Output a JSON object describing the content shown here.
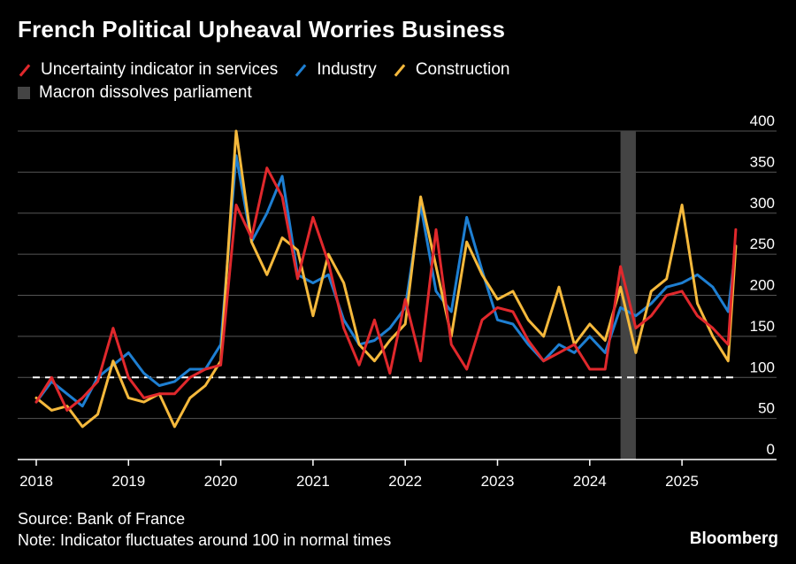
{
  "title": "French Political Upheaval Worries Business",
  "legend": {
    "services": "Uncertainty indicator in services",
    "industry": "Industry",
    "construction": "Construction",
    "event": "Macron dissolves parliament"
  },
  "source": "Source: Bank of France",
  "note": "Note: Indicator fluctuates around 100 in normal times",
  "brand": "Bloomberg",
  "colors": {
    "services": "#e0282c",
    "industry": "#1e7fd2",
    "construction": "#f5b93c",
    "event": "#444444",
    "grid": "#555555",
    "reference": "#ffffff"
  },
  "chart_data": {
    "type": "line",
    "title": "French Political Upheaval Worries Business",
    "x_ticks": [
      "2018",
      "2019",
      "2020",
      "2021",
      "2022",
      "2023",
      "2024",
      "2025"
    ],
    "y_ticks": [
      0,
      50,
      100,
      150,
      200,
      250,
      300,
      350,
      400
    ],
    "ylim": [
      0,
      400
    ],
    "xlim": [
      "2018-01",
      "2025-08"
    ],
    "grid": true,
    "reference_line": {
      "value": 100,
      "style": "dashed"
    },
    "event_band": {
      "label": "Macron dissolves parliament",
      "start": "2024-05",
      "end": "2024-06"
    },
    "series": [
      {
        "name": "Uncertainty indicator in services",
        "color_key": "services",
        "x": [
          "2018-01",
          "2018-03",
          "2018-05",
          "2018-07",
          "2018-09",
          "2018-11",
          "2019-01",
          "2019-03",
          "2019-05",
          "2019-07",
          "2019-09",
          "2019-11",
          "2020-01",
          "2020-03",
          "2020-05",
          "2020-07",
          "2020-09",
          "2020-11",
          "2021-01",
          "2021-03",
          "2021-05",
          "2021-07",
          "2021-09",
          "2021-11",
          "2022-01",
          "2022-03",
          "2022-05",
          "2022-07",
          "2022-09",
          "2022-11",
          "2023-01",
          "2023-03",
          "2023-05",
          "2023-07",
          "2023-09",
          "2023-11",
          "2024-01",
          "2024-03",
          "2024-05",
          "2024-07",
          "2024-09",
          "2024-11",
          "2025-01",
          "2025-03",
          "2025-05",
          "2025-07",
          "2025-08"
        ],
        "values": [
          70,
          100,
          60,
          75,
          95,
          160,
          100,
          75,
          80,
          80,
          100,
          110,
          115,
          310,
          270,
          355,
          320,
          220,
          295,
          240,
          160,
          115,
          170,
          105,
          195,
          120,
          280,
          140,
          110,
          170,
          185,
          180,
          145,
          120,
          130,
          140,
          110,
          110,
          235,
          160,
          175,
          200,
          205,
          175,
          160,
          140,
          280
        ]
      },
      {
        "name": "Industry",
        "color_key": "industry",
        "x": [
          "2018-01",
          "2018-03",
          "2018-05",
          "2018-07",
          "2018-09",
          "2018-11",
          "2019-01",
          "2019-03",
          "2019-05",
          "2019-07",
          "2019-09",
          "2019-11",
          "2020-01",
          "2020-03",
          "2020-05",
          "2020-07",
          "2020-09",
          "2020-11",
          "2021-01",
          "2021-03",
          "2021-05",
          "2021-07",
          "2021-09",
          "2021-11",
          "2022-01",
          "2022-03",
          "2022-05",
          "2022-07",
          "2022-09",
          "2022-11",
          "2023-01",
          "2023-03",
          "2023-05",
          "2023-07",
          "2023-09",
          "2023-11",
          "2024-01",
          "2024-03",
          "2024-05",
          "2024-07",
          "2024-09",
          "2024-11",
          "2025-01",
          "2025-03",
          "2025-05",
          "2025-07",
          "2025-08"
        ],
        "values": [
          70,
          95,
          80,
          65,
          100,
          115,
          130,
          105,
          90,
          95,
          110,
          110,
          140,
          370,
          265,
          300,
          345,
          225,
          215,
          225,
          170,
          140,
          145,
          160,
          185,
          310,
          205,
          180,
          295,
          230,
          170,
          165,
          140,
          120,
          140,
          130,
          150,
          130,
          185,
          175,
          190,
          210,
          215,
          225,
          210,
          180,
          260
        ]
      },
      {
        "name": "Construction",
        "color_key": "construction",
        "x": [
          "2018-01",
          "2018-03",
          "2018-05",
          "2018-07",
          "2018-09",
          "2018-11",
          "2019-01",
          "2019-03",
          "2019-05",
          "2019-07",
          "2019-09",
          "2019-11",
          "2020-01",
          "2020-03",
          "2020-05",
          "2020-07",
          "2020-09",
          "2020-11",
          "2021-01",
          "2021-03",
          "2021-05",
          "2021-07",
          "2021-09",
          "2021-11",
          "2022-01",
          "2022-03",
          "2022-05",
          "2022-07",
          "2022-09",
          "2022-11",
          "2023-01",
          "2023-03",
          "2023-05",
          "2023-07",
          "2023-09",
          "2023-11",
          "2024-01",
          "2024-03",
          "2024-05",
          "2024-07",
          "2024-09",
          "2024-11",
          "2025-01",
          "2025-03",
          "2025-05",
          "2025-07",
          "2025-08"
        ],
        "values": [
          75,
          60,
          65,
          40,
          55,
          120,
          75,
          70,
          80,
          40,
          75,
          90,
          120,
          400,
          265,
          225,
          270,
          255,
          175,
          250,
          215,
          140,
          120,
          145,
          165,
          320,
          235,
          150,
          265,
          225,
          195,
          205,
          170,
          150,
          210,
          140,
          165,
          145,
          210,
          130,
          205,
          220,
          310,
          190,
          150,
          120,
          260
        ]
      }
    ]
  }
}
